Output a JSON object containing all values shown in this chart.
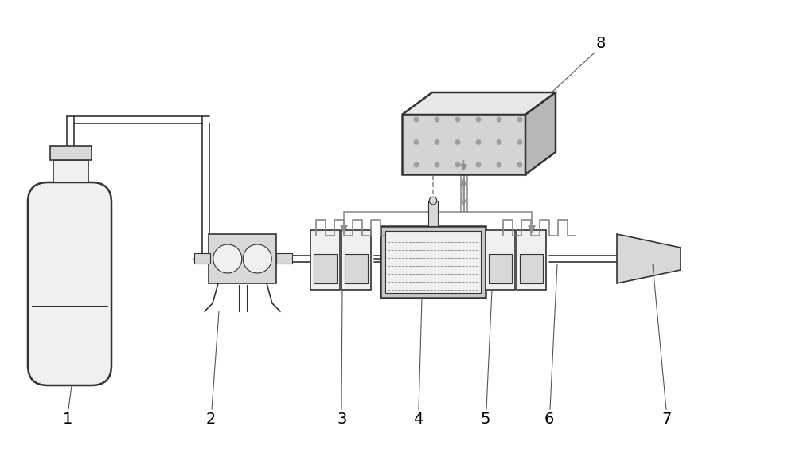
{
  "bg_color": "#ffffff",
  "line_color": "#555555",
  "dark_color": "#333333",
  "gray_color": "#888888",
  "light_fill": "#f0f0f0",
  "mid_fill": "#d8d8d8",
  "dark_fill": "#b0b0b0",
  "label_color": "#000000",
  "tube_color": "#444444",
  "ctrl_wiring_color": "#909090",
  "dashed_color": "#aaaaaa"
}
